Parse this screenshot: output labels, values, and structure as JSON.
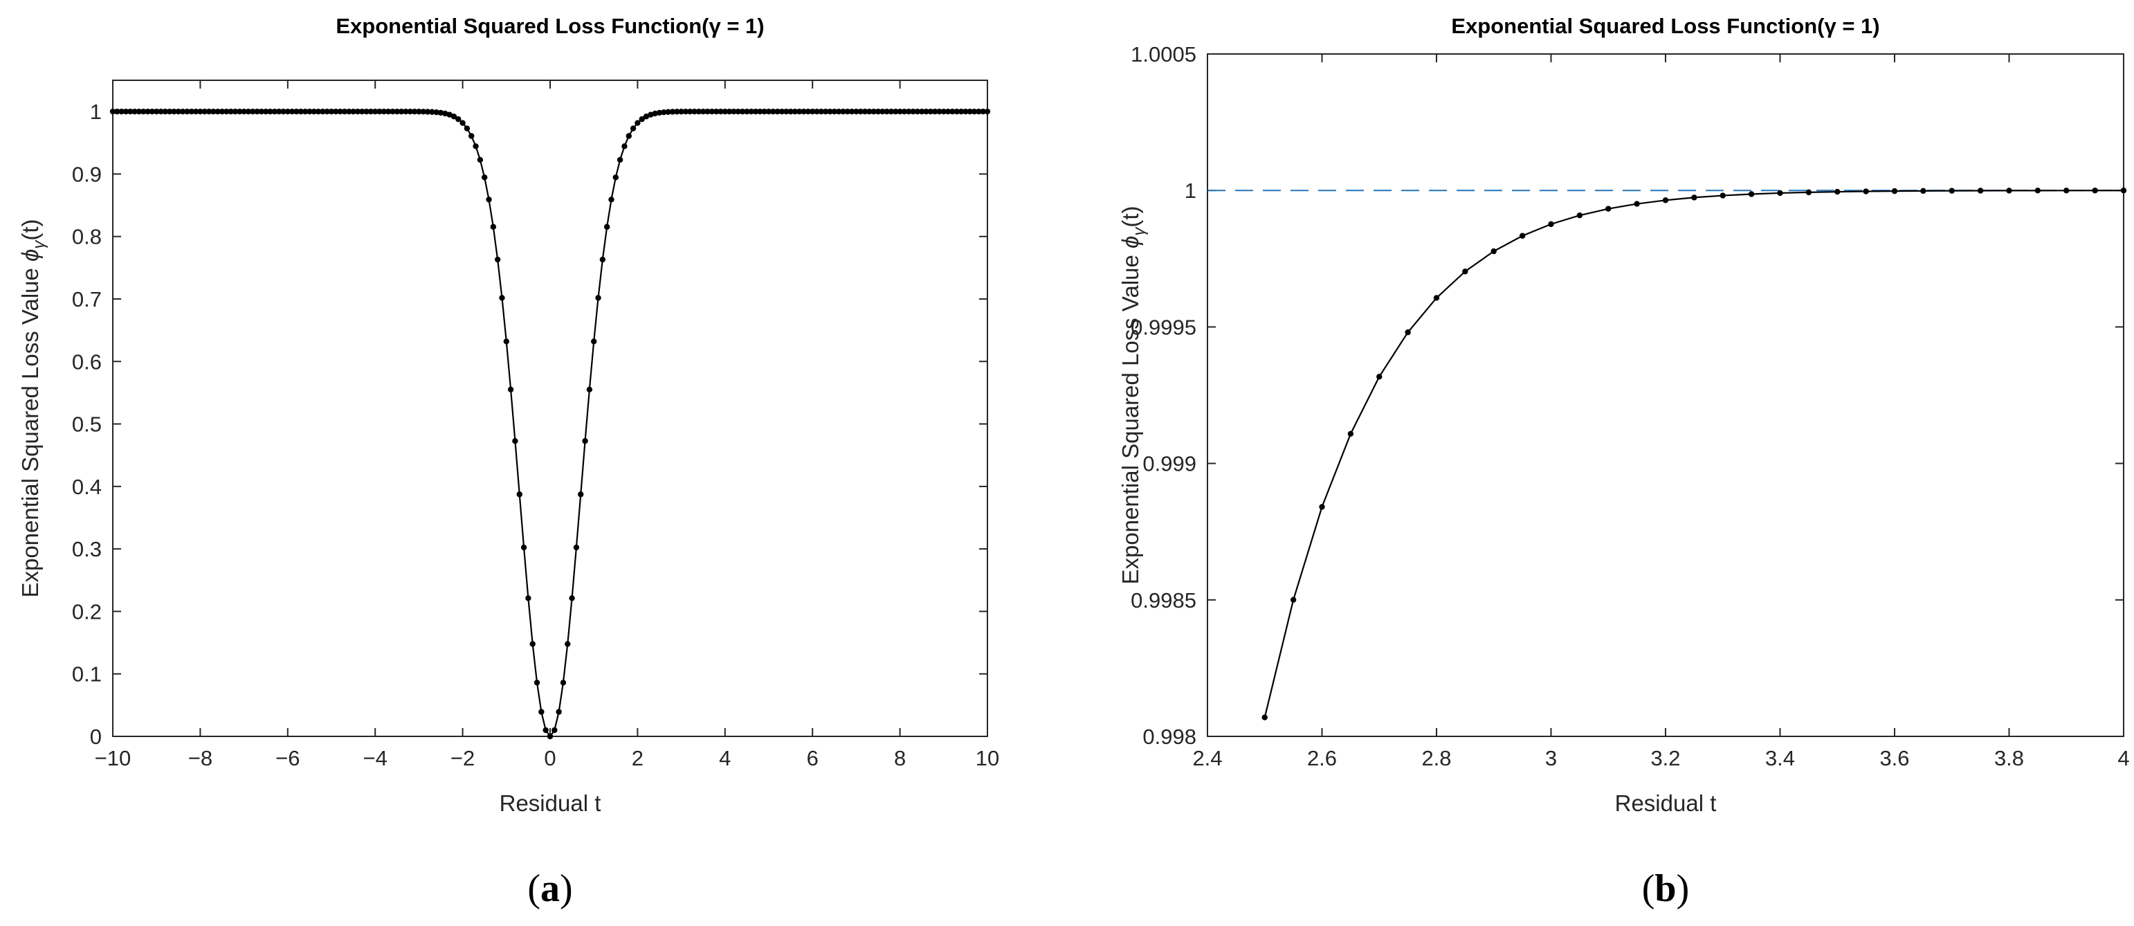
{
  "chart_data": [
    {
      "type": "line",
      "panel": "(a)",
      "caption_letter": "a",
      "title": "Exponential Squared Loss Function(γ = 1)",
      "xlabel": "Residual t",
      "ylabel": "Exponential Squared Loss Value ϕγ(t)",
      "ylabel_main": "Exponential Squared Loss Value ",
      "ylabel_phi": "ϕ",
      "ylabel_sub": "γ",
      "ylabel_arg": "(t)",
      "formula": "phi(t) = 1 - exp(-t^2 / gamma)",
      "gamma": 1,
      "xlim": [
        -10,
        10
      ],
      "ylim": [
        0,
        1.05
      ],
      "x_step": 0.1,
      "xticks": [
        -10,
        -8,
        -6,
        -4,
        -2,
        0,
        2,
        4,
        6,
        8,
        10
      ],
      "xtick_labels": [
        "−10",
        "−8",
        "−6",
        "−4",
        "−2",
        "0",
        "2",
        "4",
        "6",
        "8",
        "10"
      ],
      "yticks": [
        0,
        0.1,
        0.2,
        0.3,
        0.4,
        0.5,
        0.6,
        0.7,
        0.8,
        0.9,
        1
      ],
      "ytick_labels": [
        "0",
        "0.1",
        "0.2",
        "0.3",
        "0.4",
        "0.5",
        "0.6",
        "0.7",
        "0.8",
        "0.9",
        "1"
      ],
      "series_color": "#000000",
      "reference_line": null,
      "grid": false
    },
    {
      "type": "line",
      "panel": "(b)",
      "caption_letter": "b",
      "title": "Exponential Squared Loss Function(γ = 1)",
      "xlabel": "Residual t",
      "ylabel": "Exponential Squared Loss Value ϕγ(t)",
      "ylabel_main": "Exponential Squared Loss Value ",
      "ylabel_phi": "ϕ",
      "ylabel_sub": "γ",
      "ylabel_arg": "(t)",
      "formula": "phi(t) = 1 - exp(-t^2 / gamma)",
      "gamma": 1,
      "xlim": [
        2.4,
        4
      ],
      "ylim": [
        0.998,
        1.0005
      ],
      "x_start": 2.5,
      "x_step": 0.05,
      "xticks": [
        2.4,
        2.6,
        2.8,
        3,
        3.2,
        3.4,
        3.6,
        3.8,
        4
      ],
      "xtick_labels": [
        "2.4",
        "2.6",
        "2.8",
        "3",
        "3.2",
        "3.4",
        "3.6",
        "3.8",
        "4"
      ],
      "yticks": [
        0.998,
        0.9985,
        0.999,
        0.9995,
        1,
        1.0005
      ],
      "ytick_labels": [
        "0.998",
        "0.9985",
        "0.999",
        "0.9995",
        "1",
        "1.0005"
      ],
      "series_color": "#000000",
      "reference_line": {
        "y": 1,
        "color": "#2f7bbf",
        "style": "dashed"
      },
      "grid": false
    }
  ]
}
